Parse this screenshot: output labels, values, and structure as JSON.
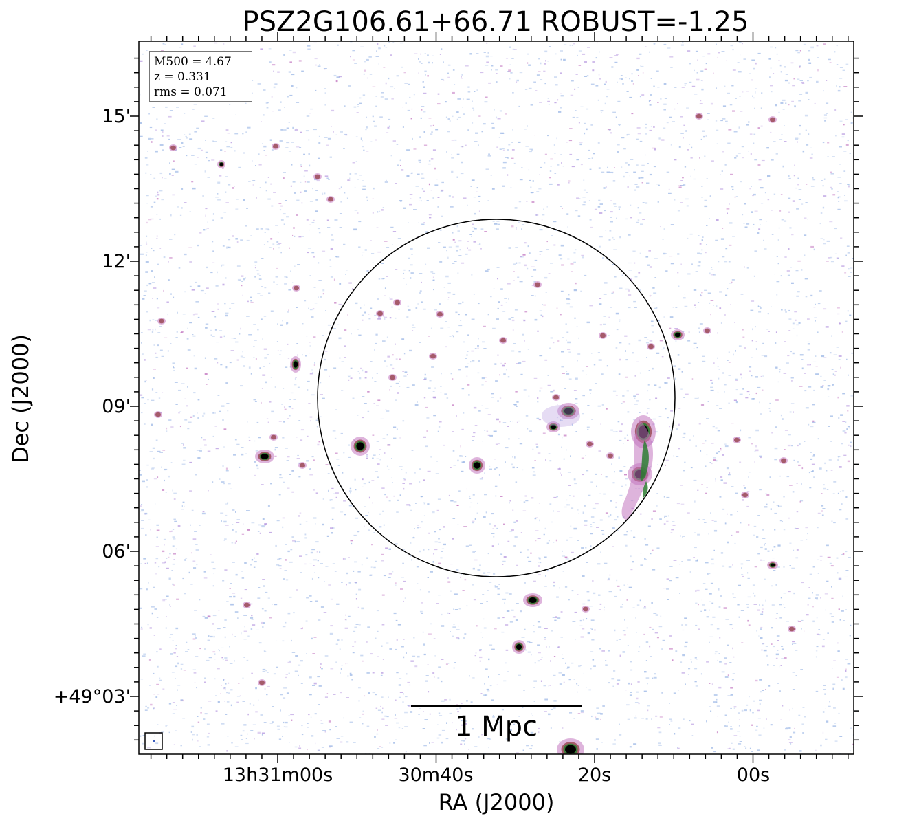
{
  "title": "PSZ2G106.61+66.71 ROBUST=-1.25",
  "axes": {
    "ylabel": "Dec (J2000)",
    "xlabel": "RA (J2000)",
    "yticks": [
      "15'",
      "12'",
      "09'",
      "06'",
      "+49°03'"
    ],
    "xticks": [
      "13h31m00s",
      "30m40s",
      "20s",
      "00s"
    ]
  },
  "info": {
    "m500": "M500 = 4.67",
    "z": "z = 0.331",
    "rms": "rms = 0.071"
  },
  "scalebar": {
    "label": "1 Mpc"
  },
  "colors": {
    "noise_blue": "#9db8e6",
    "noise_purple": "#b79ae0",
    "source_pink": "#c276c0",
    "source_red": "#9b4b57",
    "source_green": "#2e7d32",
    "source_core": "#000000"
  }
}
